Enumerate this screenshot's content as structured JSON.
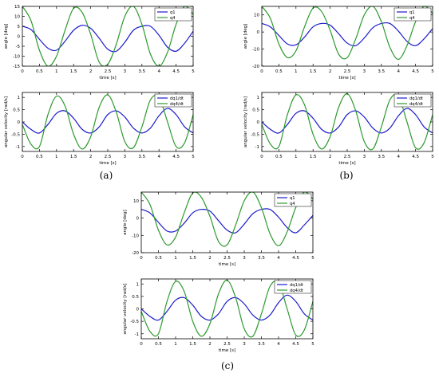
{
  "colors": {
    "q1": "#1c1ccc",
    "q4": "#2e9a2e",
    "axis": "#000000",
    "grid": "#000000"
  },
  "panel_labels": {
    "a": "(a)",
    "b": "(b)",
    "c": "(c)"
  },
  "chart_data": [
    {
      "id": "a-angle",
      "panel": "a",
      "type": "line",
      "xlabel": "time [s]",
      "ylabel": "angle [deg]",
      "xlim": [
        0,
        5
      ],
      "ylim": [
        -15,
        15
      ],
      "xticks": [
        0,
        0.5,
        1,
        1.5,
        2,
        2.5,
        3,
        3.5,
        4,
        4.5,
        5
      ],
      "yticks": [
        -15,
        -10,
        -5,
        0,
        5,
        10,
        15
      ],
      "legend": "top-right",
      "series": [
        {
          "name": "q1",
          "color": "q1",
          "x": [
            0,
            0.25,
            0.5,
            0.75,
            1.0,
            1.25,
            1.5,
            1.75,
            2.0,
            2.25,
            2.5,
            2.75,
            3.0,
            3.25,
            3.5,
            3.75,
            4.0,
            4.25,
            4.5,
            4.75,
            5.0
          ],
          "y": [
            5.0,
            3.4,
            -1.5,
            -6.0,
            -7.0,
            -2.5,
            3.0,
            5.5,
            4.0,
            -1.0,
            -6.5,
            -7.5,
            -3.0,
            3.0,
            5.0,
            5.0,
            0.5,
            -5.5,
            -7.5,
            -3.5,
            2.5
          ]
        },
        {
          "name": "q4",
          "color": "q4",
          "x": [
            0,
            0.25,
            0.5,
            0.75,
            1.0,
            1.25,
            1.5,
            1.75,
            2.0,
            2.25,
            2.5,
            2.75,
            3.0,
            3.25,
            3.5,
            3.75,
            4.0,
            4.25,
            4.5,
            4.75,
            5.0
          ],
          "y": [
            15.0,
            8.0,
            -7.0,
            -15.0,
            -10.0,
            3.0,
            14.0,
            12.0,
            1.0,
            -13.0,
            -14.0,
            -4.0,
            10.0,
            15.0,
            6.0,
            -9.0,
            -15.0,
            -8.0,
            6.0,
            15.0,
            11.0
          ]
        }
      ]
    },
    {
      "id": "a-velocity",
      "panel": "a",
      "type": "line",
      "xlabel": "time [s]",
      "ylabel": "angular velocity [rad/s]",
      "xlim": [
        0,
        5
      ],
      "ylim": [
        -1.2,
        1.2
      ],
      "xticks": [
        0,
        0.5,
        1,
        1.5,
        2,
        2.5,
        3,
        3.5,
        4,
        4.5,
        5
      ],
      "yticks": [
        -1,
        -0.5,
        0,
        0.5,
        1
      ],
      "legend": "top-right",
      "series": [
        {
          "name": "dq1/dt",
          "color": "q1",
          "x": [
            0,
            0.25,
            0.5,
            0.75,
            1.0,
            1.25,
            1.5,
            1.75,
            2.0,
            2.25,
            2.5,
            2.75,
            3.0,
            3.25,
            3.5,
            3.75,
            4.0,
            4.25,
            4.5,
            4.75,
            5.0
          ],
          "y": [
            0.0,
            -0.3,
            -0.45,
            -0.1,
            0.35,
            0.45,
            0.15,
            -0.3,
            -0.45,
            -0.2,
            0.3,
            0.45,
            0.2,
            -0.25,
            -0.45,
            -0.25,
            0.25,
            0.55,
            0.3,
            -0.2,
            -0.45
          ]
        },
        {
          "name": "dq4/dt",
          "color": "q4",
          "x": [
            0,
            0.25,
            0.5,
            0.75,
            1.0,
            1.25,
            1.5,
            1.75,
            2.0,
            2.25,
            2.5,
            2.75,
            3.0,
            3.25,
            3.5,
            3.75,
            4.0,
            4.25,
            4.5,
            4.75,
            5.0
          ],
          "y": [
            -0.1,
            -0.9,
            -1.0,
            0.3,
            1.05,
            0.65,
            -0.5,
            -1.1,
            -0.6,
            0.6,
            1.1,
            0.4,
            -0.8,
            -1.05,
            -0.2,
            0.9,
            1.0,
            0.0,
            -1.0,
            -0.85,
            0.3
          ]
        }
      ]
    },
    {
      "id": "b-angle",
      "panel": "b",
      "type": "line",
      "xlabel": "time [s]",
      "ylabel": "angle [deg]",
      "xlim": [
        0,
        5
      ],
      "ylim": [
        -20,
        15
      ],
      "xticks": [
        0,
        0.5,
        1,
        1.5,
        2,
        2.5,
        3,
        3.5,
        4,
        4.5,
        5
      ],
      "yticks": [
        -20,
        -10,
        0,
        10
      ],
      "legend": "top-right",
      "series": [
        {
          "name": "q1",
          "color": "q1",
          "x": [
            0,
            0.25,
            0.5,
            0.75,
            1.0,
            1.25,
            1.5,
            1.75,
            2.0,
            2.25,
            2.5,
            2.75,
            3.0,
            3.25,
            3.5,
            3.75,
            4.0,
            4.25,
            4.5,
            4.75,
            5.0
          ],
          "y": [
            5.0,
            3.0,
            -2.0,
            -7.0,
            -7.5,
            -3.0,
            3.0,
            5.0,
            4.0,
            -1.0,
            -6.5,
            -8.0,
            -3.5,
            2.5,
            5.0,
            5.0,
            0.5,
            -5.5,
            -8.0,
            -4.0,
            2.0
          ]
        },
        {
          "name": "q4",
          "color": "q4",
          "x": [
            0,
            0.25,
            0.5,
            0.75,
            1.0,
            1.25,
            1.5,
            1.75,
            2.0,
            2.25,
            2.5,
            2.75,
            3.0,
            3.25,
            3.5,
            3.75,
            4.0,
            4.25,
            4.5,
            4.75,
            5.0
          ],
          "y": [
            15.0,
            8.0,
            -7.0,
            -15.0,
            -11.0,
            3.0,
            14.0,
            12.0,
            1.0,
            -13.0,
            -15.0,
            -4.0,
            10.0,
            15.0,
            6.0,
            -9.0,
            -16.0,
            -8.0,
            6.0,
            15.0,
            11.0
          ]
        }
      ]
    },
    {
      "id": "b-velocity",
      "panel": "b",
      "type": "line",
      "xlabel": "time [s]",
      "ylabel": "angular velocity [rad/s]",
      "xlim": [
        0,
        5
      ],
      "ylim": [
        -1.2,
        1.2
      ],
      "xticks": [
        0,
        0.5,
        1,
        1.5,
        2,
        2.5,
        3,
        3.5,
        4,
        4.5,
        5
      ],
      "yticks": [
        -1,
        -0.5,
        0,
        0.5,
        1
      ],
      "legend": "top-right",
      "series": [
        {
          "name": "dq1/dt",
          "color": "q1",
          "x": [
            0,
            0.25,
            0.5,
            0.75,
            1.0,
            1.25,
            1.5,
            1.75,
            2.0,
            2.25,
            2.5,
            2.75,
            3.0,
            3.25,
            3.5,
            3.75,
            4.0,
            4.25,
            4.5,
            4.75,
            5.0
          ],
          "y": [
            0.0,
            -0.3,
            -0.45,
            -0.1,
            0.35,
            0.45,
            0.15,
            -0.3,
            -0.45,
            -0.2,
            0.3,
            0.45,
            0.2,
            -0.25,
            -0.45,
            -0.25,
            0.25,
            0.55,
            0.3,
            -0.2,
            -0.45
          ]
        },
        {
          "name": "dq4/dt",
          "color": "q4",
          "x": [
            0,
            0.25,
            0.5,
            0.75,
            1.0,
            1.25,
            1.5,
            1.75,
            2.0,
            2.25,
            2.5,
            2.75,
            3.0,
            3.25,
            3.5,
            3.75,
            4.0,
            4.25,
            4.5,
            4.75,
            5.0
          ],
          "y": [
            -0.1,
            -0.9,
            -1.0,
            0.3,
            1.1,
            0.7,
            -0.5,
            -1.1,
            -0.6,
            0.6,
            1.15,
            0.45,
            -0.8,
            -1.1,
            -0.2,
            0.9,
            1.05,
            0.0,
            -1.05,
            -0.85,
            0.3
          ]
        }
      ]
    },
    {
      "id": "c-angle",
      "panel": "c",
      "type": "line",
      "xlabel": "time [s]",
      "ylabel": "angle [deg]",
      "xlim": [
        0,
        5
      ],
      "ylim": [
        -20,
        15
      ],
      "xticks": [
        0,
        0.5,
        1,
        1.5,
        2,
        2.5,
        3,
        3.5,
        4,
        4.5,
        5
      ],
      "yticks": [
        -20,
        -10,
        0,
        10
      ],
      "legend": "top-right",
      "series": [
        {
          "name": "q1",
          "color": "q1",
          "x": [
            0,
            0.25,
            0.5,
            0.75,
            1.0,
            1.25,
            1.5,
            1.75,
            2.0,
            2.25,
            2.5,
            2.75,
            3.0,
            3.25,
            3.5,
            3.75,
            4.0,
            4.25,
            4.5,
            4.75,
            5.0
          ],
          "y": [
            5.0,
            3.0,
            -2.5,
            -7.5,
            -7.5,
            -3.0,
            3.0,
            5.0,
            4.0,
            -1.5,
            -7.0,
            -8.5,
            -3.5,
            2.5,
            5.0,
            5.0,
            0.5,
            -5.5,
            -8.5,
            -4.0,
            1.5
          ]
        },
        {
          "name": "q4",
          "color": "q4",
          "x": [
            0,
            0.25,
            0.5,
            0.75,
            1.0,
            1.25,
            1.5,
            1.75,
            2.0,
            2.25,
            2.5,
            2.75,
            3.0,
            3.25,
            3.5,
            3.75,
            4.0,
            4.25,
            4.5,
            4.75,
            5.0
          ],
          "y": [
            15.0,
            8.0,
            -7.0,
            -15.5,
            -11.0,
            3.0,
            14.5,
            12.0,
            1.0,
            -13.5,
            -15.5,
            -4.0,
            10.0,
            15.0,
            6.0,
            -9.0,
            -16.0,
            -8.0,
            6.0,
            15.0,
            11.0
          ]
        }
      ]
    },
    {
      "id": "c-velocity",
      "panel": "c",
      "type": "line",
      "xlabel": "time [s]",
      "ylabel": "angular velocity [rad/s]",
      "xlim": [
        0,
        5
      ],
      "ylim": [
        -1.2,
        1.2
      ],
      "xticks": [
        0,
        0.5,
        1,
        1.5,
        2,
        2.5,
        3,
        3.5,
        4,
        4.5,
        5
      ],
      "yticks": [
        -1,
        -0.5,
        0,
        0.5,
        1
      ],
      "legend": "top-right",
      "series": [
        {
          "name": "dq1/dt",
          "color": "q1",
          "x": [
            0,
            0.25,
            0.5,
            0.75,
            1.0,
            1.25,
            1.5,
            1.75,
            2.0,
            2.25,
            2.5,
            2.75,
            3.0,
            3.25,
            3.5,
            3.75,
            4.0,
            4.25,
            4.5,
            4.75,
            5.0
          ],
          "y": [
            0.0,
            -0.3,
            -0.45,
            -0.1,
            0.35,
            0.45,
            0.15,
            -0.3,
            -0.45,
            -0.2,
            0.3,
            0.45,
            0.2,
            -0.25,
            -0.45,
            -0.25,
            0.25,
            0.55,
            0.3,
            -0.2,
            -0.45
          ]
        },
        {
          "name": "dq4/dt",
          "color": "q4",
          "x": [
            0,
            0.25,
            0.5,
            0.75,
            1.0,
            1.25,
            1.5,
            1.75,
            2.0,
            2.25,
            2.5,
            2.75,
            3.0,
            3.25,
            3.5,
            3.75,
            4.0,
            4.25,
            4.5,
            4.75,
            5.0
          ],
          "y": [
            -0.1,
            -0.9,
            -1.0,
            0.3,
            1.1,
            0.7,
            -0.5,
            -1.1,
            -0.6,
            0.6,
            1.15,
            0.45,
            -0.8,
            -1.1,
            -0.2,
            0.9,
            1.05,
            0.0,
            -1.05,
            -0.85,
            0.3
          ]
        }
      ]
    }
  ]
}
